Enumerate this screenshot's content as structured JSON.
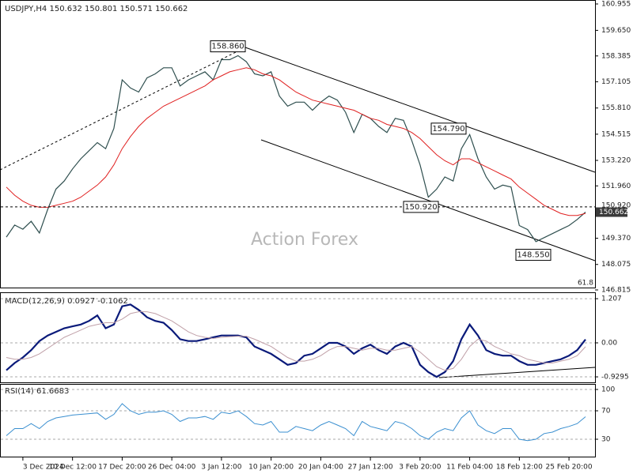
{
  "charts": [
    {
      "type": "line",
      "title": "USDJPY,H4  150.632 150.801 150.571 150.662",
      "watermark": "Action Forex",
      "fib_label": "61.8",
      "categories": [
        null,
        null,
        "3 Dec 2024",
        null,
        null,
        null,
        null,
        null,
        "10 Dec 12:00",
        null,
        null,
        null,
        null,
        null,
        "17 Dec 20:00",
        null,
        null,
        null,
        null,
        null,
        "26 Dec 04:00",
        null,
        null,
        null,
        null,
        null,
        "3 Jan 12:00",
        null,
        null,
        null,
        null,
        null,
        "10 Jan 20:00",
        null,
        null,
        null,
        null,
        null,
        "20 Jan 04:00",
        null,
        null,
        null,
        null,
        null,
        "27 Jan 12:00",
        null,
        null,
        null,
        null,
        null,
        "3 Feb 20:00",
        null,
        null,
        null,
        null,
        null,
        "11 Feb 04:00",
        null,
        null,
        null,
        null,
        null,
        "18 Feb 12:00",
        null,
        null,
        null,
        null,
        null,
        "25 Feb 20:00",
        null,
        null
      ],
      "series": [
        {
          "color": "#2f4f4f",
          "values": [
            149.43,
            150.02,
            149.82,
            150.21,
            149.63,
            150.8,
            151.8,
            152.2,
            152.8,
            153.3,
            153.7,
            154.1,
            153.8,
            154.8,
            157.2,
            156.8,
            156.6,
            157.3,
            157.5,
            157.8,
            157.8,
            156.9,
            157.2,
            157.4,
            157.6,
            157.2,
            158.2,
            158.2,
            158.4,
            158.1,
            157.5,
            157.4,
            157.6,
            156.4,
            155.9,
            156.1,
            156.1,
            155.7,
            156.1,
            156.4,
            156.2,
            155.6,
            154.6,
            155.5,
            155.3,
            154.9,
            154.6,
            155.3,
            155.2,
            154.2,
            153.0,
            151.4,
            151.8,
            152.4,
            152.2,
            153.8,
            154.5,
            153.3,
            152.4,
            151.8,
            152.0,
            151.9,
            150.0,
            149.8,
            149.2,
            149.4,
            149.6,
            149.8,
            150.0,
            150.3,
            150.662
          ]
        },
        {
          "color": "#e02020",
          "values": [
            151.9,
            151.5,
            151.2,
            151.0,
            150.9,
            150.9,
            151.0,
            151.1,
            151.2,
            151.4,
            151.7,
            152.0,
            152.4,
            153.0,
            153.8,
            154.4,
            154.9,
            155.3,
            155.6,
            155.9,
            156.1,
            156.3,
            156.5,
            156.7,
            156.9,
            157.2,
            157.4,
            157.6,
            157.7,
            157.8,
            157.7,
            157.5,
            157.4,
            157.2,
            156.9,
            156.6,
            156.4,
            156.2,
            156.1,
            156.0,
            155.9,
            155.8,
            155.7,
            155.5,
            155.3,
            155.2,
            155.0,
            154.9,
            154.8,
            154.6,
            154.3,
            153.9,
            153.5,
            153.2,
            153.0,
            153.3,
            153.3,
            153.1,
            152.9,
            152.7,
            152.5,
            152.3,
            151.9,
            151.6,
            151.3,
            151.0,
            150.8,
            150.6,
            150.5,
            150.5,
            150.6
          ]
        }
      ],
      "annotations": [
        {
          "value": 158.86,
          "label": "158.860"
        },
        {
          "value": 154.79,
          "label": "154.790"
        },
        {
          "value": 150.92,
          "label": "150.920"
        },
        {
          "value": 148.55,
          "label": "148.550"
        }
      ],
      "ylim": [
        146.815,
        160.955
      ],
      "yticks": [
        160.955,
        {
          "value": 159.65,
          "label": "159.650"
        },
        158.385,
        157.105,
        {
          "value": 155.81,
          "label": "155.810"
        },
        154.515,
        {
          "value": 153.22,
          "label": "153.220"
        },
        {
          "value": 151.96,
          "label": "151.960"
        },
        {
          "value": 149.37,
          "label": "149.370"
        },
        148.075,
        146.815
      ],
      "grid": false
    },
    {
      "type": "line",
      "title": "MACD(12,26,9) 0.0927 -0.1062",
      "series": [
        {
          "color": "#0a1a7a",
          "values": [
            -0.75,
            -0.55,
            -0.4,
            -0.2,
            0.05,
            0.2,
            0.3,
            0.4,
            0.45,
            0.5,
            0.6,
            0.75,
            0.4,
            0.5,
            1.0,
            1.05,
            0.9,
            0.7,
            0.6,
            0.55,
            0.35,
            0.1,
            0.05,
            0.05,
            0.1,
            0.15,
            0.2,
            0.2,
            0.2,
            0.15,
            -0.1,
            -0.2,
            -0.3,
            -0.45,
            -0.6,
            -0.55,
            -0.35,
            -0.3,
            -0.15,
            0.0,
            0.0,
            -0.1,
            -0.3,
            -0.15,
            -0.05,
            -0.2,
            -0.3,
            -0.1,
            0.0,
            -0.1,
            -0.6,
            -0.8,
            -0.93,
            -0.8,
            -0.5,
            0.1,
            0.5,
            0.2,
            -0.2,
            -0.3,
            -0.35,
            -0.35,
            -0.5,
            -0.6,
            -0.6,
            -0.55,
            -0.5,
            -0.45,
            -0.35,
            -0.2,
            0.0927
          ]
        },
        {
          "color": "#c0a0a8",
          "values": [
            -0.4,
            -0.45,
            -0.45,
            -0.4,
            -0.3,
            -0.15,
            0.0,
            0.15,
            0.25,
            0.35,
            0.45,
            0.5,
            0.55,
            0.55,
            0.65,
            0.8,
            0.85,
            0.85,
            0.8,
            0.7,
            0.6,
            0.45,
            0.3,
            0.2,
            0.15,
            0.12,
            0.15,
            0.17,
            0.18,
            0.18,
            0.1,
            0.0,
            -0.1,
            -0.25,
            -0.4,
            -0.5,
            -0.5,
            -0.45,
            -0.35,
            -0.2,
            -0.1,
            -0.1,
            -0.15,
            -0.2,
            -0.15,
            -0.15,
            -0.2,
            -0.2,
            -0.15,
            -0.1,
            -0.25,
            -0.45,
            -0.65,
            -0.75,
            -0.7,
            -0.45,
            -0.1,
            0.1,
            0.05,
            -0.1,
            -0.2,
            -0.3,
            -0.35,
            -0.45,
            -0.5,
            -0.55,
            -0.55,
            -0.5,
            -0.45,
            -0.35,
            -0.1062
          ]
        }
      ],
      "ylim": [
        -1.08,
        1.36
      ],
      "yticks": [
        1.207,
        {
          "value": 0,
          "label": "0.00"
        },
        -0.9295
      ],
      "grid": true
    },
    {
      "type": "line",
      "title": "RSI(14) 61.6683",
      "series": [
        {
          "color": "#3a8fd0",
          "values": [
            35,
            45,
            45,
            52,
            45,
            55,
            60,
            62,
            64,
            65,
            66,
            67,
            58,
            65,
            80,
            70,
            65,
            68,
            68,
            70,
            65,
            55,
            60,
            60,
            62,
            58,
            68,
            66,
            70,
            62,
            52,
            50,
            55,
            40,
            40,
            48,
            45,
            42,
            50,
            55,
            50,
            45,
            35,
            55,
            48,
            45,
            42,
            55,
            52,
            45,
            35,
            30,
            40,
            45,
            42,
            60,
            70,
            50,
            42,
            38,
            45,
            45,
            30,
            28,
            30,
            38,
            40,
            45,
            48,
            52,
            61.6683
          ]
        }
      ],
      "ylim": [
        0,
        100
      ],
      "yticks": [
        100,
        70,
        30
      ],
      "grid": true
    }
  ]
}
